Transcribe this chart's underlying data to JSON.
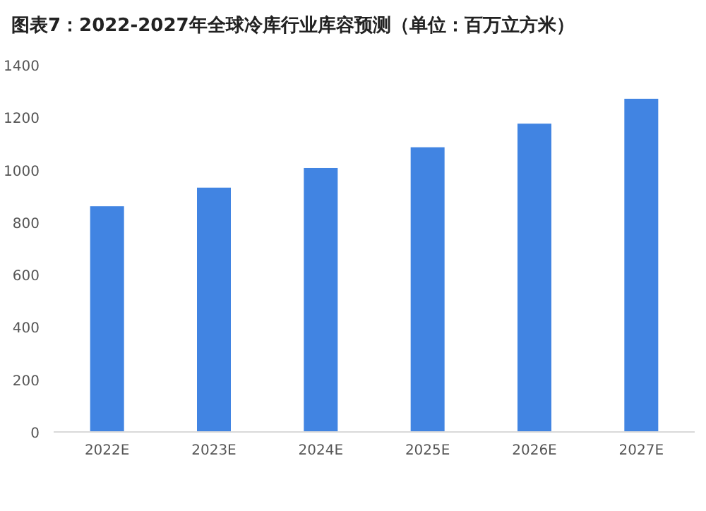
{
  "chart_data": {
    "type": "bar",
    "title": "图表7：2022-2027年全球冷库行业库容预测（单位：百万立方米）",
    "categories": [
      "2022E",
      "2023E",
      "2024E",
      "2025E",
      "2026E",
      "2027E"
    ],
    "values": [
      861,
      932,
      1007,
      1086,
      1176,
      1271
    ],
    "color": "#4184e2",
    "ylim": [
      0,
      1400
    ],
    "yticks": [
      0,
      200,
      400,
      600,
      800,
      1000,
      1200,
      1400
    ],
    "grid": false
  }
}
